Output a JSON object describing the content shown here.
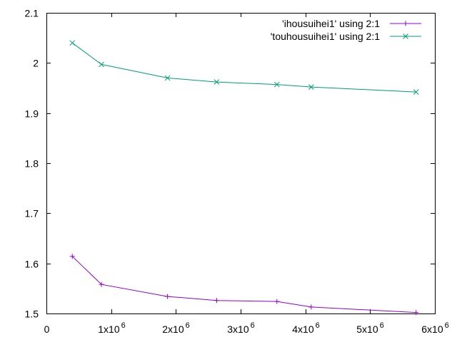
{
  "chart_data": {
    "type": "line",
    "x": [
      400000,
      850000,
      1870000,
      2630000,
      3560000,
      4090000,
      5710000
    ],
    "series": [
      {
        "name": "'ihousuihei1' using 2:1",
        "values": [
          1.614,
          1.558,
          1.534,
          1.526,
          1.524,
          1.513,
          1.502
        ],
        "color": "#9400d3",
        "marker": "plus"
      },
      {
        "name": "'touhousuihei1' using 2:1",
        "values": [
          2.04,
          1.997,
          1.97,
          1.962,
          1.957,
          1.952,
          1.942
        ],
        "color": "#009e73",
        "marker": "cross"
      }
    ],
    "xlim": [
      0,
      6000000
    ],
    "ylim": [
      1.5,
      2.1
    ],
    "x_ticks": [
      {
        "value": 0,
        "base": "0",
        "exp": ""
      },
      {
        "value": 1000000,
        "base": "1x10",
        "exp": "6"
      },
      {
        "value": 2000000,
        "base": "2x10",
        "exp": "6"
      },
      {
        "value": 3000000,
        "base": "3x10",
        "exp": "6"
      },
      {
        "value": 4000000,
        "base": "4x10",
        "exp": "6"
      },
      {
        "value": 5000000,
        "base": "5x10",
        "exp": "6"
      },
      {
        "value": 6000000,
        "base": "6x10",
        "exp": "6"
      }
    ],
    "y_ticks": [
      {
        "value": 1.5,
        "label": "1.5"
      },
      {
        "value": 1.6,
        "label": "1.6"
      },
      {
        "value": 1.7,
        "label": "1.7"
      },
      {
        "value": 1.8,
        "label": "1.8"
      },
      {
        "value": 1.9,
        "label": "1.9"
      },
      {
        "value": 2.0,
        "label": "2"
      },
      {
        "value": 2.1,
        "label": "2.1"
      }
    ],
    "title": "",
    "xlabel": "",
    "ylabel": "",
    "grid": false,
    "legend_position": "top-right"
  }
}
